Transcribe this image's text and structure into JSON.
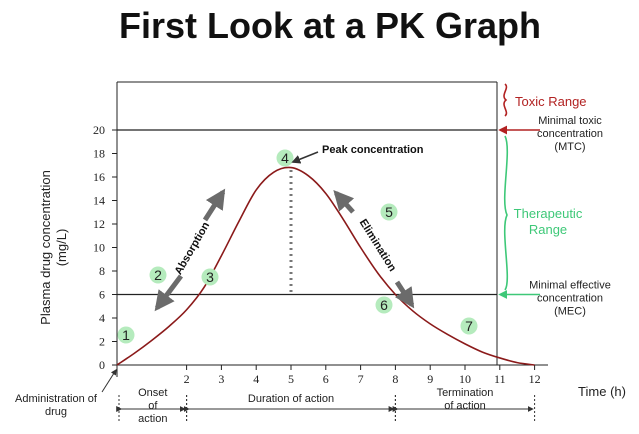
{
  "chart_data": {
    "type": "line",
    "title": "First Look at a PK Graph",
    "xlabel": "Time (h)",
    "ylabel": "Plasma drug concentration (mg/L)",
    "xlim": [
      0,
      12
    ],
    "ylim": [
      0,
      20
    ],
    "x_ticks": [
      2,
      3,
      4,
      5,
      6,
      7,
      8,
      9,
      10,
      11,
      12
    ],
    "y_ticks": [
      0,
      2,
      4,
      6,
      8,
      10,
      12,
      14,
      16,
      18,
      20
    ],
    "series": [
      {
        "color": "#8b1a1a",
        "x": [
          0,
          0.5,
          1,
          1.5,
          2,
          2.5,
          3,
          3.5,
          4,
          4.5,
          5,
          5.5,
          6,
          6.5,
          7,
          7.5,
          8,
          8.5,
          9,
          9.5,
          10,
          10.5,
          11,
          11.5,
          12
        ],
        "y": [
          0,
          1.0,
          2.1,
          3.3,
          4.7,
          6.6,
          9.3,
          12.2,
          14.9,
          16.4,
          16.8,
          16.1,
          14.6,
          12.4,
          10.0,
          7.8,
          6.0,
          4.6,
          3.5,
          2.6,
          1.8,
          1.1,
          0.6,
          0.2,
          0
        ]
      }
    ],
    "thresholds": [
      {
        "y": 20,
        "label": "Minimal toxic concentration (MTC)",
        "label_lines": [
          "Minimal toxic",
          "concentration",
          "(MTC)"
        ]
      },
      {
        "y": 6,
        "label": "Minimal effective concentration (MEC)",
        "label_lines": [
          "Minimal effective",
          "concentration",
          "(MEC)"
        ]
      }
    ],
    "ranges": [
      {
        "label": "Toxic Range",
        "label_lines": [
          "Toxic Range"
        ],
        "color": "#b22222"
      },
      {
        "label": "Therapeutic Range",
        "label_lines": [
          "Therapeutic",
          "Range"
        ],
        "color": "#3ec878"
      }
    ],
    "annotations": {
      "peak": "Peak concentration",
      "absorption": "Absorption",
      "elimination": "Elimination",
      "administration": [
        "Administration of",
        "drug"
      ]
    },
    "markers": [
      "1",
      "2",
      "3",
      "4",
      "5",
      "6",
      "7"
    ],
    "marker_color": "#b5ebbd",
    "phases": [
      {
        "label": "Onset of action",
        "lines": [
          "Onset",
          "of",
          "action"
        ],
        "x_start": 0,
        "x_end": 2
      },
      {
        "label": "Duration of action",
        "lines": [
          "Duration of action"
        ],
        "x_start": 2,
        "x_end": 8
      },
      {
        "label": "Termination of action",
        "lines": [
          "Termination",
          "of action"
        ],
        "x_start": 8,
        "x_end": 12
      }
    ]
  }
}
